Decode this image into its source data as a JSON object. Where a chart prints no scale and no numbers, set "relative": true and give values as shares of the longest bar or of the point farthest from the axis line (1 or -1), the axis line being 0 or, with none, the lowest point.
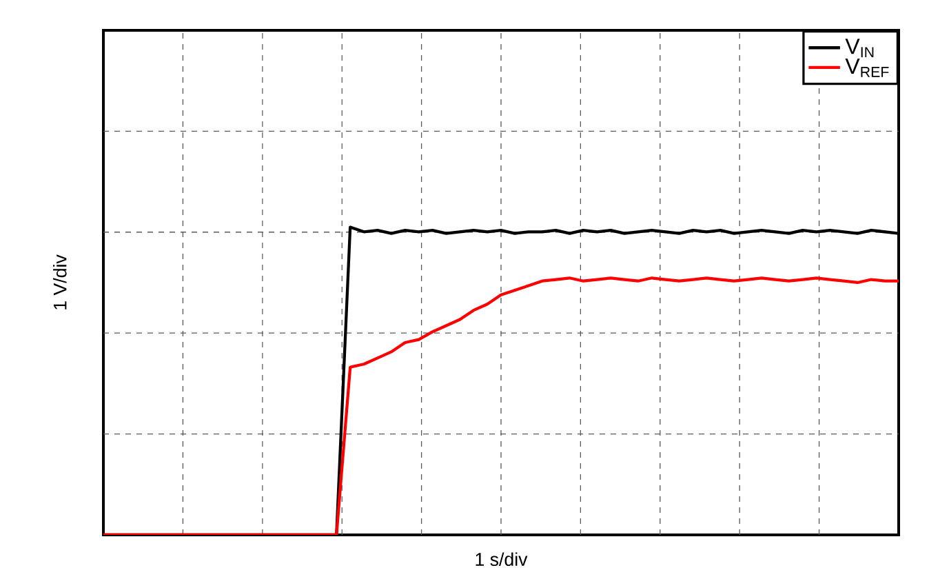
{
  "chart_data": {
    "type": "line",
    "relative": true,
    "xlabel": "1 s/div",
    "ylabel": "1 V/div",
    "tick_labels": false,
    "grid": true,
    "legend": "top right",
    "line_style": "solid",
    "categories": [
      null,
      null,
      null,
      null,
      null,
      null,
      null,
      null,
      null,
      null,
      null,
      null,
      null,
      null,
      null,
      null,
      null,
      null,
      null,
      null,
      null,
      null,
      null,
      null,
      null,
      null,
      null,
      null,
      null,
      null,
      null,
      null,
      null,
      null,
      null,
      null,
      null,
      null,
      null,
      null,
      null,
      null,
      null,
      null,
      null,
      null,
      null,
      null,
      null,
      null,
      null,
      null,
      null,
      null,
      null,
      null,
      null,
      null,
      null
    ],
    "series": [
      {
        "name": "V$_{IN}$",
        "color": "#000000",
        "values": [
          0,
          0,
          0,
          0,
          0,
          0,
          0,
          0,
          0,
          0,
          0,
          0,
          0,
          0,
          0,
          0,
          0,
          0,
          1.0,
          0.985,
          0.99,
          0.98,
          0.99,
          0.985,
          0.99,
          0.98,
          0.985,
          0.99,
          0.985,
          0.99,
          0.98,
          0.985,
          0.985,
          0.99,
          0.98,
          0.99,
          0.985,
          0.99,
          0.98,
          0.985,
          0.99,
          0.985,
          0.98,
          0.99,
          0.985,
          0.99,
          0.98,
          0.985,
          0.99,
          0.985,
          0.98,
          0.99,
          0.985,
          0.99,
          0.985,
          0.98,
          0.99,
          0.985,
          0.98
        ]
      },
      {
        "name": "V$_{REF}$",
        "color": "#ff0000",
        "values": [
          0,
          0,
          0,
          0,
          0,
          0,
          0,
          0,
          0,
          0,
          0,
          0,
          0,
          0,
          0,
          0,
          0,
          0,
          0.545,
          0.555,
          0.575,
          0.595,
          0.625,
          0.635,
          0.66,
          0.68,
          0.7,
          0.73,
          0.75,
          0.78,
          0.795,
          0.81,
          0.825,
          0.83,
          0.835,
          0.825,
          0.83,
          0.835,
          0.83,
          0.825,
          0.835,
          0.83,
          0.825,
          0.83,
          0.835,
          0.83,
          0.825,
          0.83,
          0.835,
          0.83,
          0.825,
          0.83,
          0.835,
          0.83,
          0.825,
          0.82,
          0.83,
          0.825,
          0.825
        ]
      }
    ]
  }
}
